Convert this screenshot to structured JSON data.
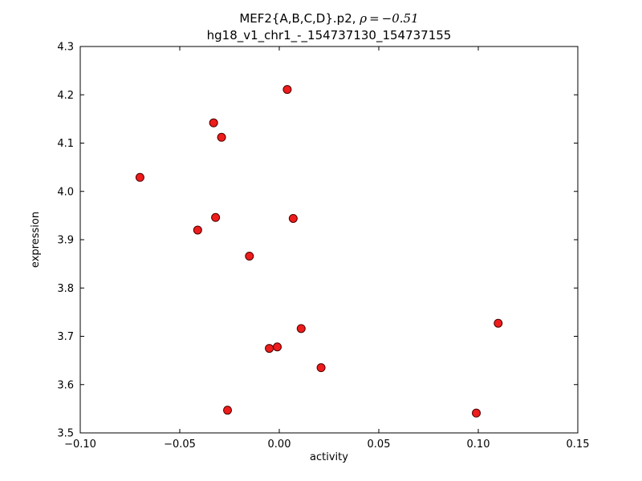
{
  "figure": {
    "title_line1_prefix": "MEF2{A,B,C,D}.p2, ",
    "title_line1_math": "ρ = −0.51",
    "title_line2": "hg18_v1_chr1_-_154737130_154737155",
    "xlabel": "activity",
    "ylabel": "expression",
    "background_color": "#ffffff",
    "axis_color": "#000000",
    "point_fill": "#ee1c1c",
    "point_edge": "#4d0000"
  },
  "chart_data": {
    "type": "scatter",
    "title": "MEF2{A,B,C,D}.p2, ρ=−0.51",
    "subtitle": "hg18_v1_chr1_-_154737130_154737155",
    "xlabel": "activity",
    "ylabel": "expression",
    "xlim": [
      -0.1,
      0.15
    ],
    "ylim": [
      3.5,
      4.3
    ],
    "xticks": [
      -0.1,
      -0.05,
      0.0,
      0.05,
      0.1,
      0.15
    ],
    "xtick_labels": [
      "−0.10",
      "−0.05",
      "0.00",
      "0.05",
      "0.10",
      "0.15"
    ],
    "yticks": [
      3.5,
      3.6,
      3.7,
      3.8,
      3.9,
      4.0,
      4.1,
      4.2,
      4.3
    ],
    "ytick_labels": [
      "3.5",
      "3.6",
      "3.7",
      "3.8",
      "3.9",
      "4.0",
      "4.1",
      "4.2",
      "4.3"
    ],
    "correlation_rho": -0.51,
    "grid": false,
    "legend": null,
    "marker": "circle",
    "marker_color": "red",
    "points": [
      [
        0.004,
        4.211
      ],
      [
        -0.033,
        4.142
      ],
      [
        -0.029,
        4.112
      ],
      [
        -0.07,
        4.029
      ],
      [
        -0.041,
        3.92
      ],
      [
        -0.032,
        3.946
      ],
      [
        0.007,
        3.944
      ],
      [
        -0.015,
        3.866
      ],
      [
        0.011,
        3.716
      ],
      [
        0.11,
        3.727
      ],
      [
        -0.005,
        3.675
      ],
      [
        -0.001,
        3.678
      ],
      [
        0.021,
        3.635
      ],
      [
        -0.026,
        3.547
      ],
      [
        0.099,
        3.541
      ]
    ]
  }
}
